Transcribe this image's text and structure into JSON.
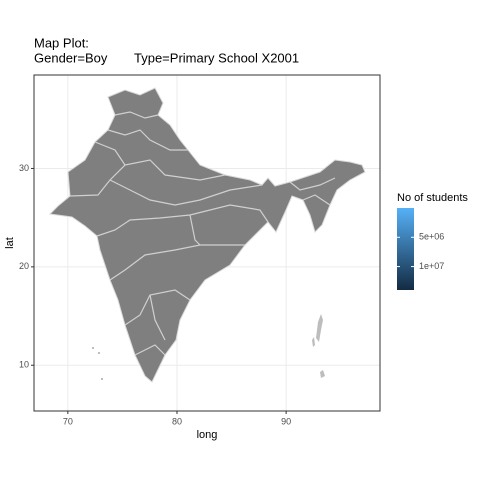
{
  "chart_data": {
    "type": "map",
    "title_lines": [
      "Map Plot:",
      "Gender=Boy",
      "Type=Primary School X2001"
    ],
    "x_label": "long",
    "y_label": "lat",
    "xlim": [
      66.9,
      98.6
    ],
    "ylim": [
      5.35,
      39.5
    ],
    "xticks": [
      70,
      80,
      90
    ],
    "yticks": [
      10,
      20,
      30
    ],
    "grid": true,
    "fill_color": "#7f7f7f",
    "legend": {
      "title": "No of students",
      "lim": [
        0,
        14000000
      ],
      "ticks": [
        {
          "value": 5000000,
          "label": "5e+06"
        },
        {
          "value": 10000000,
          "label": "1e+07"
        }
      ],
      "colors": [
        "#56b1f7",
        "#132b43"
      ]
    }
  }
}
